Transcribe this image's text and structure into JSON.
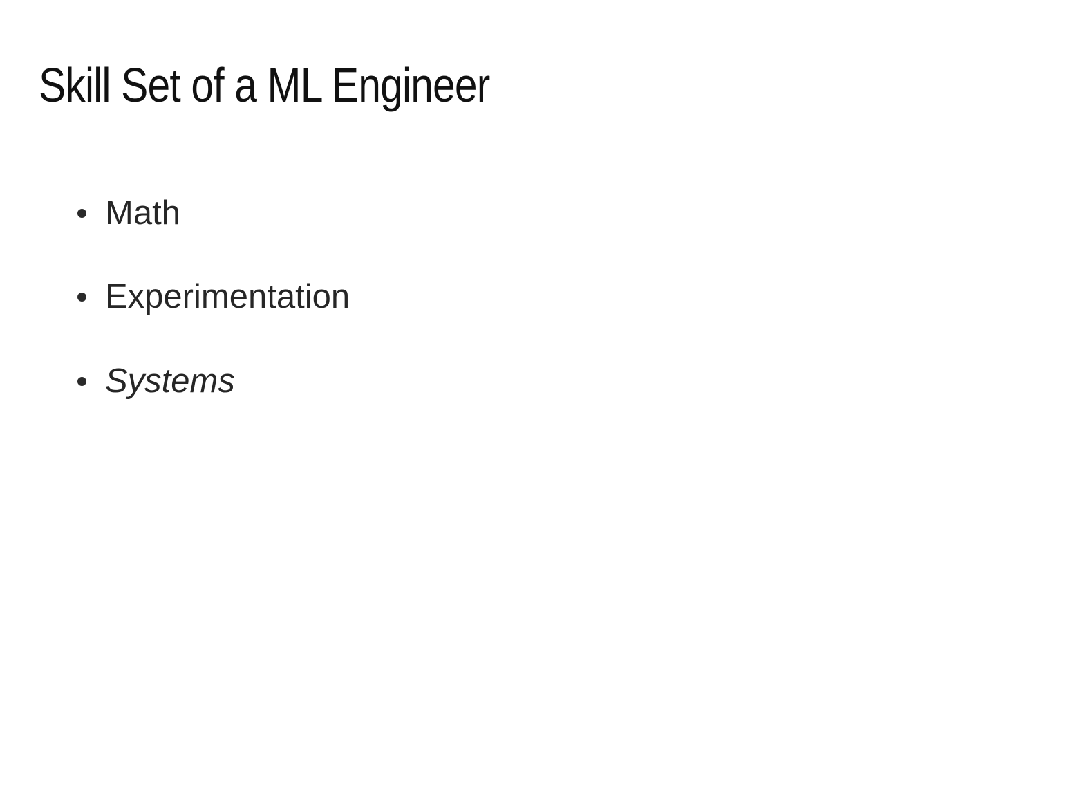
{
  "slide": {
    "title": "Skill Set of a ML Engineer",
    "bullets": [
      {
        "text": "Math",
        "italic": false
      },
      {
        "text": "Experimentation",
        "italic": false
      },
      {
        "text": "Systems",
        "italic": true
      }
    ]
  }
}
